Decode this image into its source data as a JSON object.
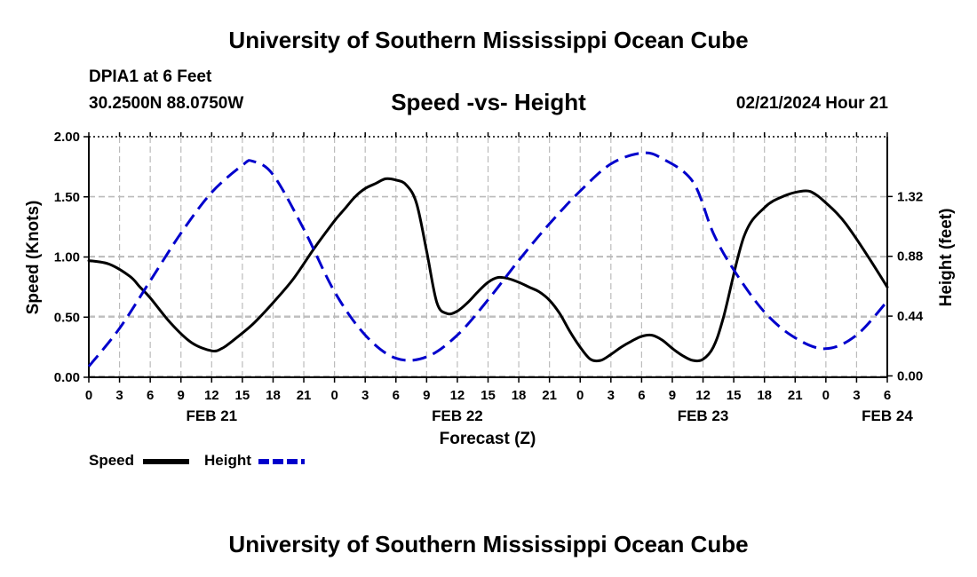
{
  "header": {
    "title": "University of Southern Mississippi Ocean Cube",
    "station": "DPIA1 at 6 Feet",
    "coords": "30.2500N  88.0750W",
    "subtitle": "Speed -vs- Height",
    "datetime": "02/21/2024 Hour 21"
  },
  "footer": {
    "title": "University of Southern Mississippi Ocean Cube"
  },
  "colors": {
    "speed": "#000000",
    "height": "#0000cc",
    "grid": "#bbbbbb"
  },
  "chart_data": {
    "type": "line",
    "title": "Speed -vs- Height",
    "xlabel": "Forecast (Z)",
    "ylabel_left": "Speed (Knots)",
    "ylabel_right": "Height (feet)",
    "x_range": [
      0,
      78
    ],
    "x_unit": "hours from 02/21 00Z",
    "x_ticks": [
      0,
      3,
      6,
      9,
      12,
      15,
      18,
      21,
      24,
      27,
      30,
      33,
      36,
      39,
      42,
      45,
      48,
      51,
      54,
      57,
      60,
      63,
      66,
      69,
      72,
      75,
      78
    ],
    "x_tick_labels": [
      "0",
      "3",
      "6",
      "9",
      "12",
      "15",
      "18",
      "21",
      "0",
      "3",
      "6",
      "9",
      "12",
      "15",
      "18",
      "21",
      "0",
      "3",
      "6",
      "9",
      "12",
      "15",
      "18",
      "21",
      "0",
      "3",
      "6"
    ],
    "date_labels": [
      {
        "text": "FEB 21",
        "hour": 12
      },
      {
        "text": "FEB 22",
        "hour": 36
      },
      {
        "text": "FEB 23",
        "hour": 60
      },
      {
        "text": "FEB 24",
        "hour": 78
      }
    ],
    "ylim_left": [
      0,
      2
    ],
    "y_ticks_left": [
      0,
      0.5,
      1,
      1.5,
      2
    ],
    "y_tick_labels_left": [
      "0.00",
      "0.50",
      "1.00",
      "1.50",
      "2.00"
    ],
    "ylim_right": [
      -0.01,
      1.76
    ],
    "y_ticks_right": [
      0,
      0.44,
      0.88,
      1.32
    ],
    "y_tick_labels_right": [
      "0.00",
      "0.44",
      "0.88",
      "1.32"
    ],
    "series": [
      {
        "name": "Speed",
        "axis": "left",
        "style": "solid",
        "x": [
          0,
          2,
          4,
          5,
          6,
          8,
          10,
          12,
          13,
          14,
          16,
          18,
          20,
          22,
          24,
          25,
          26,
          27,
          28,
          29,
          30,
          31,
          32,
          33,
          34,
          35,
          36,
          37,
          38,
          39,
          40,
          41,
          42,
          43,
          44,
          45,
          46,
          47,
          48,
          49,
          50,
          51,
          52,
          53,
          54,
          55,
          56,
          57,
          58,
          59,
          60,
          61,
          62,
          64,
          66,
          68,
          70,
          71,
          72,
          73,
          74,
          76,
          78
        ],
        "values": [
          0.97,
          0.94,
          0.84,
          0.75,
          0.66,
          0.45,
          0.29,
          0.22,
          0.24,
          0.3,
          0.44,
          0.62,
          0.82,
          1.07,
          1.3,
          1.4,
          1.5,
          1.57,
          1.61,
          1.65,
          1.64,
          1.6,
          1.45,
          1.05,
          0.62,
          0.53,
          0.55,
          0.62,
          0.71,
          0.79,
          0.83,
          0.82,
          0.79,
          0.75,
          0.71,
          0.64,
          0.53,
          0.38,
          0.25,
          0.15,
          0.14,
          0.19,
          0.25,
          0.3,
          0.34,
          0.35,
          0.31,
          0.24,
          0.18,
          0.14,
          0.15,
          0.25,
          0.5,
          1.17,
          1.41,
          1.51,
          1.55,
          1.52,
          1.45,
          1.37,
          1.27,
          1.02,
          0.75
        ]
      },
      {
        "name": "Height",
        "axis": "right",
        "style": "dashed",
        "x": [
          0,
          3,
          6,
          9,
          12,
          15,
          16,
          18,
          21,
          24,
          27,
          30,
          33,
          36,
          39,
          42,
          45,
          48,
          51,
          54,
          56,
          59,
          61,
          63,
          66,
          69,
          72,
          75,
          78
        ],
        "values": [
          0.07,
          0.35,
          0.7,
          1.05,
          1.35,
          1.55,
          1.58,
          1.48,
          1.08,
          0.62,
          0.3,
          0.13,
          0.14,
          0.3,
          0.56,
          0.85,
          1.12,
          1.36,
          1.56,
          1.64,
          1.6,
          1.43,
          1.05,
          0.78,
          0.47,
          0.28,
          0.2,
          0.3,
          0.55
        ]
      }
    ],
    "legend": {
      "position": "bottom-left",
      "entries": [
        "Speed",
        "Height"
      ]
    }
  }
}
